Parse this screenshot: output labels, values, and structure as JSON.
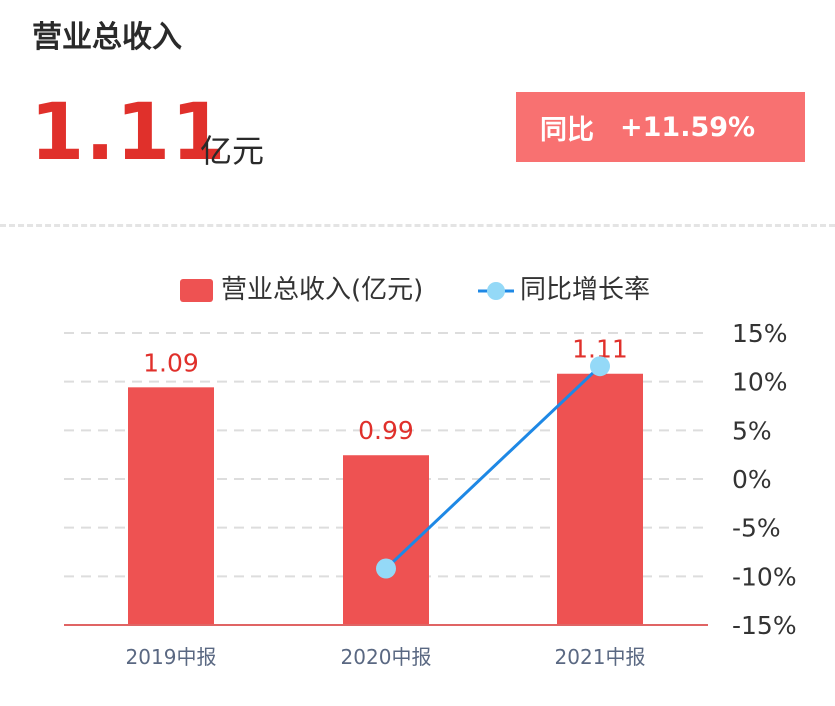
{
  "header": {
    "title": "营业总收入",
    "value": "1.11",
    "unit": "亿元",
    "yoy_label": "同比",
    "yoy_value": "+11.59%"
  },
  "colors": {
    "bar": "#ee5252",
    "line": "#1e88e5",
    "point": "#94d9f7",
    "value_label": "#e0302b",
    "badge": "#f87171"
  },
  "chart_data": {
    "type": "bar",
    "categories": [
      "2019中报",
      "2020中报",
      "2021中报"
    ],
    "series": [
      {
        "name": "营业总收入(亿元)",
        "type": "bar",
        "values": [
          1.09,
          0.99,
          1.11
        ],
        "labels": [
          "1.09",
          "0.99",
          "1.11"
        ]
      },
      {
        "name": "同比增长率",
        "type": "line",
        "axis": "right",
        "values": [
          null,
          -9.2,
          11.59
        ]
      }
    ],
    "y2_ticks": [
      "15%",
      "10%",
      "5%",
      "0%",
      "-5%",
      "-10%",
      "-15%"
    ],
    "y2lim": [
      -15,
      15
    ],
    "ylim_left": [
      0.74,
      1.17
    ],
    "grid": true,
    "legend": "top-center"
  }
}
